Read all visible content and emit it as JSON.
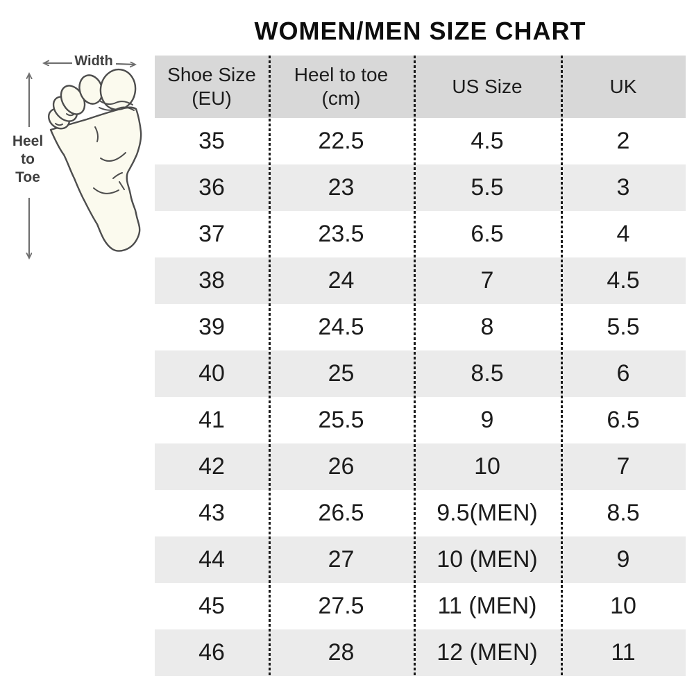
{
  "title": "WOMEN/MEN SIZE CHART",
  "diagram": {
    "width_label": "Width",
    "heel_to_toe_label_lines": [
      "Heel",
      "to",
      "Toe"
    ]
  },
  "table": {
    "headers": [
      {
        "lines": [
          "Shoe Size",
          "(EU)"
        ]
      },
      {
        "lines": [
          "Heel to toe",
          "(cm)"
        ]
      },
      {
        "lines": [
          "US Size"
        ]
      },
      {
        "lines": [
          "UK"
        ]
      }
    ],
    "rows": [
      [
        "35",
        "22.5",
        "4.5",
        "2"
      ],
      [
        "36",
        "23",
        "5.5",
        "3"
      ],
      [
        "37",
        "23.5",
        "6.5",
        "4"
      ],
      [
        "38",
        "24",
        "7",
        "4.5"
      ],
      [
        "39",
        "24.5",
        "8",
        "5.5"
      ],
      [
        "40",
        "25",
        "8.5",
        "6"
      ],
      [
        "41",
        "25.5",
        "9",
        "6.5"
      ],
      [
        "42",
        "26",
        "10",
        "7"
      ],
      [
        "43",
        "26.5",
        "9.5(MEN)",
        "8.5"
      ],
      [
        "44",
        "27",
        "10 (MEN)",
        "9"
      ],
      [
        "45",
        "27.5",
        "11 (MEN)",
        "10"
      ],
      [
        "46",
        "28",
        "12 (MEN)",
        "11"
      ]
    ]
  },
  "chart_data": {
    "type": "table",
    "title": "WOMEN/MEN SIZE CHART",
    "columns": [
      "Shoe Size (EU)",
      "Heel to toe (cm)",
      "US Size",
      "UK"
    ],
    "rows": [
      [
        "35",
        "22.5",
        "4.5",
        "2"
      ],
      [
        "36",
        "23",
        "5.5",
        "3"
      ],
      [
        "37",
        "23.5",
        "6.5",
        "4"
      ],
      [
        "38",
        "24",
        "7",
        "4.5"
      ],
      [
        "39",
        "24.5",
        "8",
        "5.5"
      ],
      [
        "40",
        "25",
        "8.5",
        "6"
      ],
      [
        "41",
        "25.5",
        "9",
        "6.5"
      ],
      [
        "42",
        "26",
        "10",
        "7"
      ],
      [
        "43",
        "26.5",
        "9.5(MEN)",
        "8.5"
      ],
      [
        "44",
        "27",
        "10 (MEN)",
        "9"
      ],
      [
        "45",
        "27.5",
        "11 (MEN)",
        "10"
      ],
      [
        "46",
        "28",
        "12 (MEN)",
        "11"
      ]
    ]
  },
  "colors": {
    "header_bg": "#d8d8d8",
    "row_alt_bg": "#ebebeb",
    "row_bg": "#ffffff",
    "text": "#1c1c1c",
    "divider": "#1a1a1a",
    "arrow": "#6f6f6f",
    "label": "#3f3f3f",
    "foot_fill": "#fbfaee",
    "foot_outline": "#4d4d4d"
  }
}
